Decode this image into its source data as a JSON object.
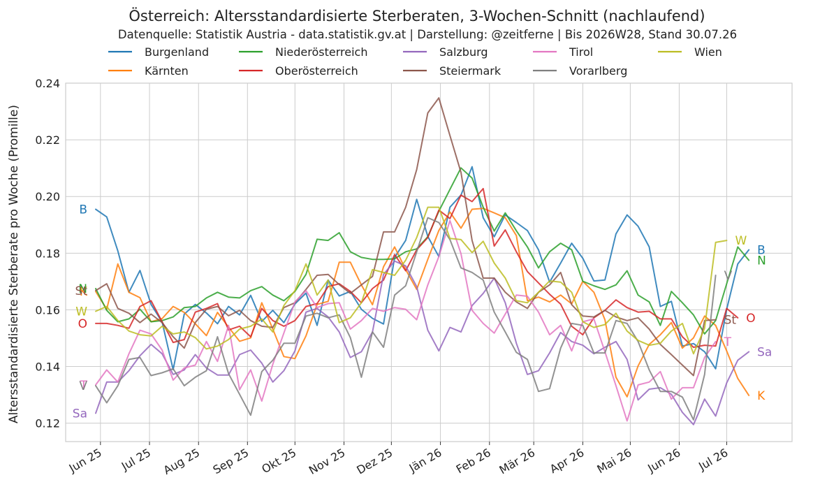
{
  "chart_data": {
    "type": "line",
    "title": "Österreich: Altersstandardisierte Sterberaten, 3-Wochen-Schnitt (nachlaufend)",
    "subtitle": "Datenquelle: Statistik Austria - data.statistik.gv.at | Darstellung: @zeitferne | Bis 2026W28, Stand 30.07.26",
    "ylabel": "Altersstandardisierte Sterberate pro Woche (Promille)",
    "xlabel": "",
    "ylim": [
      0.1135,
      0.24
    ],
    "yticks": [
      0.12,
      0.14,
      0.16,
      0.18,
      0.2,
      0.22,
      0.24
    ],
    "ytick_labels": [
      "0.12",
      "0.14",
      "0.16",
      "0.18",
      "0.20",
      "0.22",
      "0.24"
    ],
    "x_start_week": "2025W23",
    "x_end_week": "2026W28",
    "xticks": [
      {
        "label": "Jun 25",
        "week_index": 0.43
      },
      {
        "label": "Jul 25",
        "week_index": 4.86
      },
      {
        "label": "Aug 25",
        "week_index": 9.29
      },
      {
        "label": "Sep 25",
        "week_index": 13.71
      },
      {
        "label": "Okt 25",
        "week_index": 18.0
      },
      {
        "label": "Nov 25",
        "week_index": 22.43
      },
      {
        "label": "Dez 25",
        "week_index": 26.71
      },
      {
        "label": "Jän 26",
        "week_index": 31.14
      },
      {
        "label": "Feb 26",
        "week_index": 35.57
      },
      {
        "label": "Mär 26",
        "week_index": 39.57
      },
      {
        "label": "Apr 26",
        "week_index": 44.0
      },
      {
        "label": "Mai 26",
        "week_index": 48.29
      },
      {
        "label": "Jun 26",
        "week_index": 52.71
      },
      {
        "label": "Jul 26",
        "week_index": 57.0
      }
    ],
    "grid": true,
    "legend_position": "top",
    "series": [
      {
        "name": "Burgenland",
        "abbr": "B",
        "color": "#1f77b4",
        "values": [
          0.1955,
          0.1928,
          0.1808,
          0.1662,
          0.1739,
          0.1619,
          0.1557,
          0.1389,
          0.1585,
          0.1619,
          0.1589,
          0.1551,
          0.1612,
          0.1582,
          0.1651,
          0.1559,
          0.1598,
          0.1555,
          0.1621,
          0.1659,
          0.1545,
          0.1705,
          0.1649,
          0.1665,
          0.1602,
          0.157,
          0.155,
          0.1785,
          0.1845,
          0.199,
          0.1859,
          0.1788,
          0.1962,
          0.2005,
          0.2105,
          0.1925,
          0.1858,
          0.1935,
          0.1908,
          0.188,
          0.1812,
          0.1698,
          0.1765,
          0.1835,
          0.1782,
          0.1702,
          0.1705,
          0.1868,
          0.1935,
          0.1895,
          0.1822,
          0.1612,
          0.163,
          0.1472,
          0.1481,
          0.1452,
          0.1392,
          0.1602,
          0.1762,
          0.1812
        ]
      },
      {
        "name": "Kärnten",
        "abbr": "K",
        "color": "#ff7f0e",
        "values": [
          0.1665,
          0.1602,
          0.1762,
          0.1662,
          0.1643,
          0.1558,
          0.1569,
          0.1612,
          0.1591,
          0.1551,
          0.1509,
          0.1591,
          0.1539,
          0.1489,
          0.1501,
          0.1625,
          0.1532,
          0.1435,
          0.1428,
          0.1508,
          0.1619,
          0.163,
          0.1768,
          0.1768,
          0.1688,
          0.1618,
          0.1752,
          0.1822,
          0.1742,
          0.1672,
          0.1778,
          0.188,
          0.1945,
          0.1888,
          0.1955,
          0.1958,
          0.1942,
          0.1925,
          0.1862,
          0.1632,
          0.1645,
          0.1628,
          0.1652,
          0.1621,
          0.1701,
          0.1662,
          0.1565,
          0.1362,
          0.1293,
          0.1402,
          0.1478,
          0.1512,
          0.1555,
          0.1465,
          0.1501,
          0.1578,
          0.1545,
          0.1455,
          0.1358,
          0.1298
        ]
      },
      {
        "name": "Niederösterreich",
        "abbr": "N",
        "color": "#2ca02c",
        "values": [
          0.1675,
          0.1598,
          0.1558,
          0.1568,
          0.1602,
          0.1558,
          0.1562,
          0.1575,
          0.1608,
          0.1612,
          0.1642,
          0.1662,
          0.1645,
          0.1642,
          0.1668,
          0.1682,
          0.1652,
          0.1632,
          0.1665,
          0.1725,
          0.1849,
          0.1845,
          0.1872,
          0.1805,
          0.1785,
          0.1778,
          0.1778,
          0.178,
          0.1805,
          0.1815,
          0.1858,
          0.1948,
          0.2025,
          0.2101,
          0.2065,
          0.1962,
          0.1878,
          0.1942,
          0.1879,
          0.1822,
          0.1748,
          0.1805,
          0.1835,
          0.1812,
          0.1701,
          0.1685,
          0.1672,
          0.1688,
          0.1738,
          0.1652,
          0.1628,
          0.1545,
          0.1665,
          0.1625,
          0.1582,
          0.1515,
          0.1562,
          0.1692,
          0.1822,
          0.1775
        ]
      },
      {
        "name": "Oberösterreich",
        "abbr": "O",
        "color": "#d62728",
        "values": [
          0.1552,
          0.1552,
          0.1545,
          0.1535,
          0.1612,
          0.1632,
          0.1558,
          0.1485,
          0.1495,
          0.1592,
          0.1605,
          0.1622,
          0.1529,
          0.1542,
          0.1505,
          0.1605,
          0.1562,
          0.1542,
          0.1562,
          0.1612,
          0.1622,
          0.1682,
          0.1692,
          0.1665,
          0.1625,
          0.1675,
          0.1705,
          0.1795,
          0.1738,
          0.1812,
          0.1855,
          0.1952,
          0.1922,
          0.2005,
          0.1982,
          0.2028,
          0.1825,
          0.1882,
          0.1805,
          0.1735,
          0.1695,
          0.1655,
          0.162,
          0.1542,
          0.1512,
          0.1572,
          0.1598,
          0.1635,
          0.1608,
          0.1592,
          0.1595,
          0.1568,
          0.1568,
          0.1505,
          0.1468,
          0.1475,
          0.1472,
          0.1605,
          0.1572
        ]
      },
      {
        "name": "Salzburg",
        "abbr": "Sa",
        "color": "#9467bd",
        "values": [
          0.1235,
          0.1345,
          0.1345,
          0.1385,
          0.1438,
          0.1478,
          0.1445,
          0.1372,
          0.1388,
          0.1442,
          0.1395,
          0.137,
          0.137,
          0.1442,
          0.1458,
          0.1412,
          0.1345,
          0.1385,
          0.1455,
          0.1592,
          0.1605,
          0.1575,
          0.1522,
          0.1432,
          0.1452,
          0.1522,
          0.1725,
          0.1772,
          0.1755,
          0.1682,
          0.1528,
          0.1455,
          0.1538,
          0.1522,
          0.1615,
          0.1658,
          0.1712,
          0.1625,
          0.1482,
          0.1372,
          0.1385,
          0.1448,
          0.152,
          0.1488,
          0.1475,
          0.1445,
          0.1468,
          0.1488,
          0.1425,
          0.1282,
          0.132,
          0.1325,
          0.1302,
          0.1238,
          0.1195,
          0.1285,
          0.1225,
          0.1342,
          0.1422,
          0.1452
        ]
      },
      {
        "name": "Steiermark",
        "abbr": "St",
        "color": "#8c564b",
        "values": [
          0.1668,
          0.1692,
          0.1605,
          0.1588,
          0.1555,
          0.1585,
          0.1555,
          0.1505,
          0.1465,
          0.1555,
          0.1602,
          0.1612,
          0.1579,
          0.1598,
          0.1562,
          0.1542,
          0.1538,
          0.1608,
          0.1625,
          0.1672,
          0.1722,
          0.1725,
          0.1689,
          0.1658,
          0.1688,
          0.1718,
          0.1875,
          0.1875,
          0.1962,
          0.2095,
          0.2295,
          0.2348,
          0.2215,
          0.2085,
          0.1845,
          0.1712,
          0.1712,
          0.1662,
          0.1628,
          0.1605,
          0.1662,
          0.1688,
          0.1732,
          0.1618,
          0.1578,
          0.1575,
          0.1598,
          0.1575,
          0.1562,
          0.1572,
          0.1532,
          0.1478,
          0.1442,
          0.1405,
          0.1368,
          0.1562,
          0.1565
        ]
      },
      {
        "name": "Tirol",
        "abbr": "T",
        "color": "#e377c2",
        "values": [
          0.1335,
          0.1388,
          0.1345,
          0.1445,
          0.1528,
          0.1515,
          0.1458,
          0.1352,
          0.1395,
          0.1405,
          0.1488,
          0.1418,
          0.1545,
          0.1318,
          0.1388,
          0.1278,
          0.1408,
          0.1518,
          0.1628,
          0.1668,
          0.1608,
          0.1622,
          0.1625,
          0.1532,
          0.1562,
          0.1605,
          0.1595,
          0.1608,
          0.1602,
          0.1565,
          0.1688,
          0.1788,
          0.1915,
          0.1798,
          0.1598,
          0.1552,
          0.1518,
          0.1585,
          0.1652,
          0.1648,
          0.1592,
          0.1512,
          0.1545,
          0.1455,
          0.1558,
          0.1568,
          0.1452,
          0.1332,
          0.1208,
          0.1335,
          0.1345,
          0.1382,
          0.1285,
          0.1325,
          0.1325,
          0.1432,
          0.1488
        ]
      },
      {
        "name": "Vorarlberg",
        "abbr": "V",
        "color": "#7f7f7f",
        "values": [
          0.1332,
          0.1272,
          0.1332,
          0.1425,
          0.1432,
          0.1368,
          0.1378,
          0.1392,
          0.1332,
          0.1362,
          0.1385,
          0.1505,
          0.1375,
          0.1302,
          0.1228,
          0.1382,
          0.1422,
          0.1482,
          0.1482,
          0.1578,
          0.1588,
          0.1572,
          0.1582,
          0.1502,
          0.1362,
          0.1522,
          0.1468,
          0.1652,
          0.1685,
          0.1805,
          0.1925,
          0.1908,
          0.1848,
          0.1748,
          0.1732,
          0.1705,
          0.1592,
          0.1522,
          0.145,
          0.1425,
          0.1312,
          0.1322,
          0.1465,
          0.1552,
          0.1545,
          0.1448,
          0.1448,
          0.1562,
          0.1552,
          0.1488,
          0.1388,
          0.1312,
          0.1312,
          0.1292,
          0.1212,
          0.1372,
          0.1722
        ]
      },
      {
        "name": "Wien",
        "abbr": "W",
        "color": "#bcbd22",
        "values": [
          0.1595,
          0.1612,
          0.1562,
          0.1525,
          0.1512,
          0.1508,
          0.1542,
          0.1515,
          0.1522,
          0.1502,
          0.1462,
          0.1472,
          0.1495,
          0.1532,
          0.1542,
          0.1568,
          0.1522,
          0.1615,
          0.1668,
          0.1762,
          0.1652,
          0.1705,
          0.1555,
          0.1572,
          0.1625,
          0.1742,
          0.1732,
          0.1722,
          0.1775,
          0.1855,
          0.1962,
          0.1962,
          0.1852,
          0.1848,
          0.1802,
          0.1842,
          0.1765,
          0.1712,
          0.1632,
          0.1625,
          0.1662,
          0.1702,
          0.1698,
          0.1662,
          0.1558,
          0.1538,
          0.1548,
          0.1588,
          0.1525,
          0.1492,
          0.1475,
          0.1482,
          0.1525,
          0.1552,
          0.1445,
          0.1535,
          0.1838,
          0.1845
        ]
      }
    ]
  }
}
